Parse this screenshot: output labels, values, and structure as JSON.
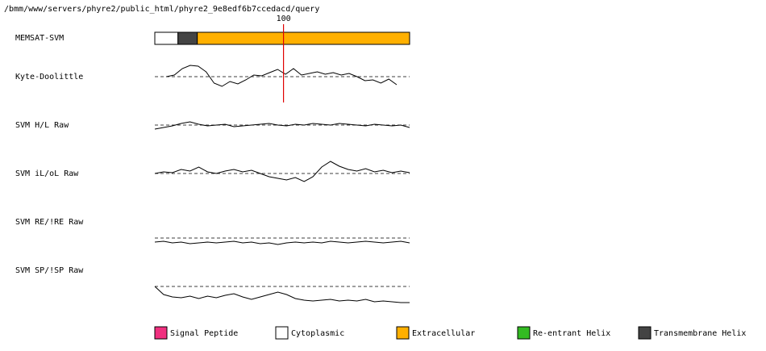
{
  "header": {
    "path": "/bmm/www/servers/phyre2/public_html/phyre2_9e8edf6b7ccedacd/query"
  },
  "xlim": [
    0,
    198
  ],
  "marker": {
    "value": 100
  },
  "tracks": [
    {
      "label": "MEMSAT-SVM"
    },
    {
      "label": "Kyte-Doolittle"
    },
    {
      "label": "SVM H/L Raw"
    },
    {
      "label": "SVM iL/oL Raw"
    },
    {
      "label": "SVM RE/!RE Raw"
    },
    {
      "label": "SVM SP/!SP Raw"
    }
  ],
  "segments": [
    {
      "start": 0,
      "end": 18,
      "color": "#ffffff"
    },
    {
      "start": 18,
      "end": 33,
      "color": "#444444"
    },
    {
      "start": 33,
      "end": 198,
      "color": "#ffb000"
    }
  ],
  "profiles": [
    {
      "x_range": [
        9,
        188
      ],
      "values": [
        0,
        0.2,
        1.0,
        1.4,
        1.3,
        0.6,
        -0.8,
        -1.2,
        -0.6,
        -0.9,
        -0.4,
        0.2,
        0.1,
        0.5,
        0.9,
        0.3,
        1.0,
        0.2,
        0.4,
        0.6,
        0.3,
        0.5,
        0.2,
        0.4,
        0.0,
        -0.5,
        -0.4,
        -0.8,
        -0.3,
        -1.0
      ]
    },
    {
      "x_range": [
        0,
        198
      ],
      "values": [
        -0.5,
        -0.3,
        -0.1,
        0.2,
        0.4,
        0.1,
        -0.1,
        0.0,
        0.1,
        -0.2,
        -0.1,
        0.0,
        0.1,
        0.2,
        0.0,
        -0.1,
        0.1,
        0.0,
        0.2,
        0.1,
        0.0,
        0.2,
        0.1,
        0.0,
        -0.1,
        0.1,
        0.0,
        -0.1,
        0.0,
        -0.3
      ]
    },
    {
      "x_range": [
        0,
        198
      ],
      "values": [
        0.0,
        0.2,
        0.1,
        0.5,
        0.3,
        0.8,
        0.2,
        0.0,
        0.3,
        0.5,
        0.2,
        0.4,
        0.0,
        -0.4,
        -0.6,
        -0.8,
        -0.5,
        -1.0,
        -0.4,
        0.8,
        1.5,
        0.9,
        0.5,
        0.3,
        0.6,
        0.2,
        0.4,
        0.1,
        0.3,
        0.1
      ]
    },
    {
      "x_range": [
        0,
        198
      ],
      "values": [
        -0.5,
        -0.4,
        -0.6,
        -0.5,
        -0.7,
        -0.6,
        -0.5,
        -0.6,
        -0.5,
        -0.4,
        -0.6,
        -0.5,
        -0.7,
        -0.6,
        -0.8,
        -0.6,
        -0.5,
        -0.6,
        -0.5,
        -0.6,
        -0.4,
        -0.5,
        -0.6,
        -0.5,
        -0.4,
        -0.5,
        -0.6,
        -0.5,
        -0.4,
        -0.6
      ]
    },
    {
      "x_range": [
        0,
        198
      ],
      "values": [
        0,
        -1.0,
        -1.3,
        -1.4,
        -1.2,
        -1.5,
        -1.2,
        -1.4,
        -1.1,
        -0.9,
        -1.3,
        -1.6,
        -1.3,
        -1.0,
        -0.7,
        -1.0,
        -1.5,
        -1.7,
        -1.8,
        -1.7,
        -1.6,
        -1.8,
        -1.7,
        -1.8,
        -1.6,
        -1.9,
        -1.8,
        -1.9,
        -2.0,
        -2.0
      ]
    }
  ],
  "legend": [
    {
      "label": "Signal Peptide",
      "color": "#f0307f"
    },
    {
      "label": "Cytoplasmic",
      "color": "#ffffff"
    },
    {
      "label": "Extracellular",
      "color": "#ffb000"
    },
    {
      "label": "Re-entrant Helix",
      "color": "#33bb22"
    },
    {
      "label": "Transmembrane Helix",
      "color": "#444444"
    }
  ]
}
